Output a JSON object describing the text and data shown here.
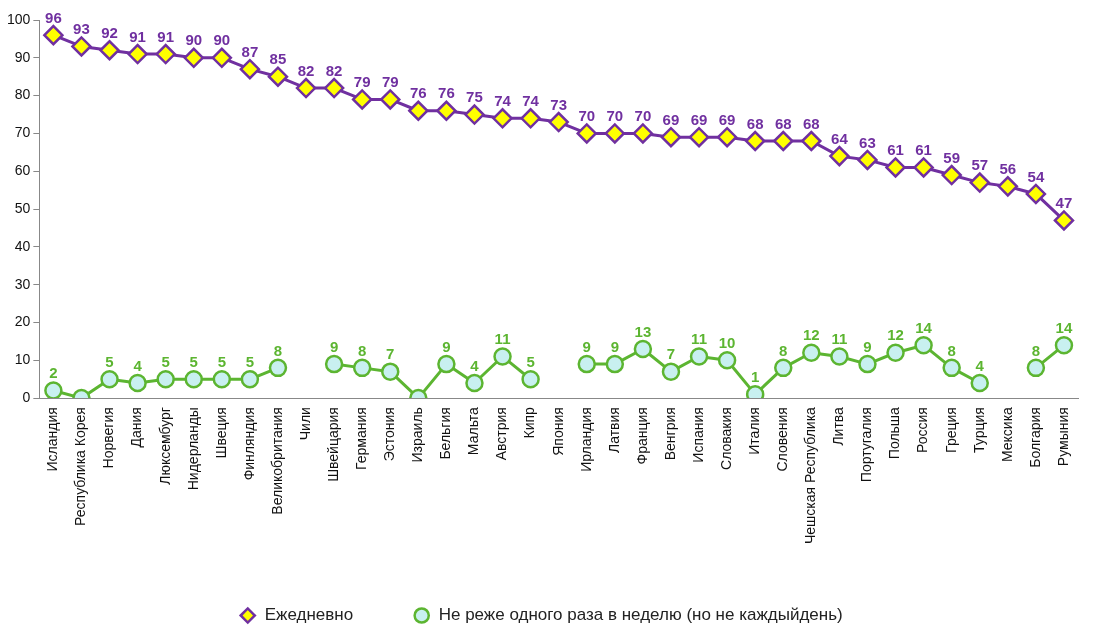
{
  "chart_data": {
    "type": "line",
    "categories": [
      "Исландия",
      "Республика Корея",
      "Норвегия",
      "Дания",
      "Люксембург",
      "Нидерланды",
      "Швеция",
      "Финляндия",
      "Великобритания",
      "Чили",
      "Швейцария",
      "Германия",
      "Эстония",
      "Израиль",
      "Бельгия",
      "Мальта",
      "Австрия",
      "Кипр",
      "Япония",
      "Ирландия",
      "Латвия",
      "Франция",
      "Венгрия",
      "Испания",
      "Словакия",
      "Италия",
      "Словения",
      "Чешская Республика",
      "Литва",
      "Португалия",
      "Польша",
      "Россия",
      "Греция",
      "Турция",
      "Мексика",
      "Болгария",
      "Румыния"
    ],
    "series": [
      {
        "name": "Ежедневно",
        "color": "#7030a0",
        "marker": "diamond",
        "values": [
          96,
          93,
          92,
          91,
          91,
          90,
          90,
          87,
          85,
          82,
          82,
          79,
          79,
          76,
          76,
          75,
          74,
          74,
          73,
          70,
          70,
          70,
          69,
          69,
          69,
          68,
          68,
          68,
          64,
          63,
          61,
          61,
          59,
          57,
          56,
          54,
          47
        ],
        "value_labels": [
          "96",
          "93",
          "92",
          "91",
          "91",
          "90",
          "90",
          "87",
          "85",
          "82",
          "82",
          "79",
          "79",
          "76",
          "76",
          "75",
          "74",
          "74",
          "73",
          "70",
          "70",
          "70",
          "69",
          "69",
          "69",
          "68",
          "68",
          "68",
          "64",
          "63",
          "61",
          "61",
          "59",
          "57",
          "56",
          "54",
          "47"
        ]
      },
      {
        "name": "Не реже одного раза в неделю (но не каждыйдень)",
        "color": "#5cb531",
        "marker": "circle",
        "values": [
          2,
          0,
          5,
          4,
          5,
          5,
          5,
          5,
          8,
          null,
          9,
          8,
          7,
          0,
          9,
          4,
          11,
          5,
          null,
          9,
          9,
          13,
          7,
          11,
          10,
          1,
          8,
          12,
          11,
          9,
          12,
          14,
          8,
          4,
          null,
          8,
          14
        ],
        "value_labels": [
          "2",
          null,
          "5",
          "4",
          "5",
          "5",
          "5",
          "5",
          "8",
          null,
          "9",
          "8",
          "7",
          null,
          "9",
          "4",
          "11",
          "5",
          null,
          "9",
          "9",
          "13",
          "7",
          "11",
          "10",
          "1",
          "8",
          "12",
          "11",
          "9",
          "12",
          "14",
          "8",
          "4",
          null,
          "8",
          "14"
        ]
      }
    ],
    "ylim": [
      0,
      100
    ],
    "yticks": [
      0,
      10,
      20,
      30,
      40,
      50,
      60,
      70,
      80,
      90,
      100
    ],
    "grid": false,
    "legend": "bottom",
    "line_style": "solid"
  }
}
